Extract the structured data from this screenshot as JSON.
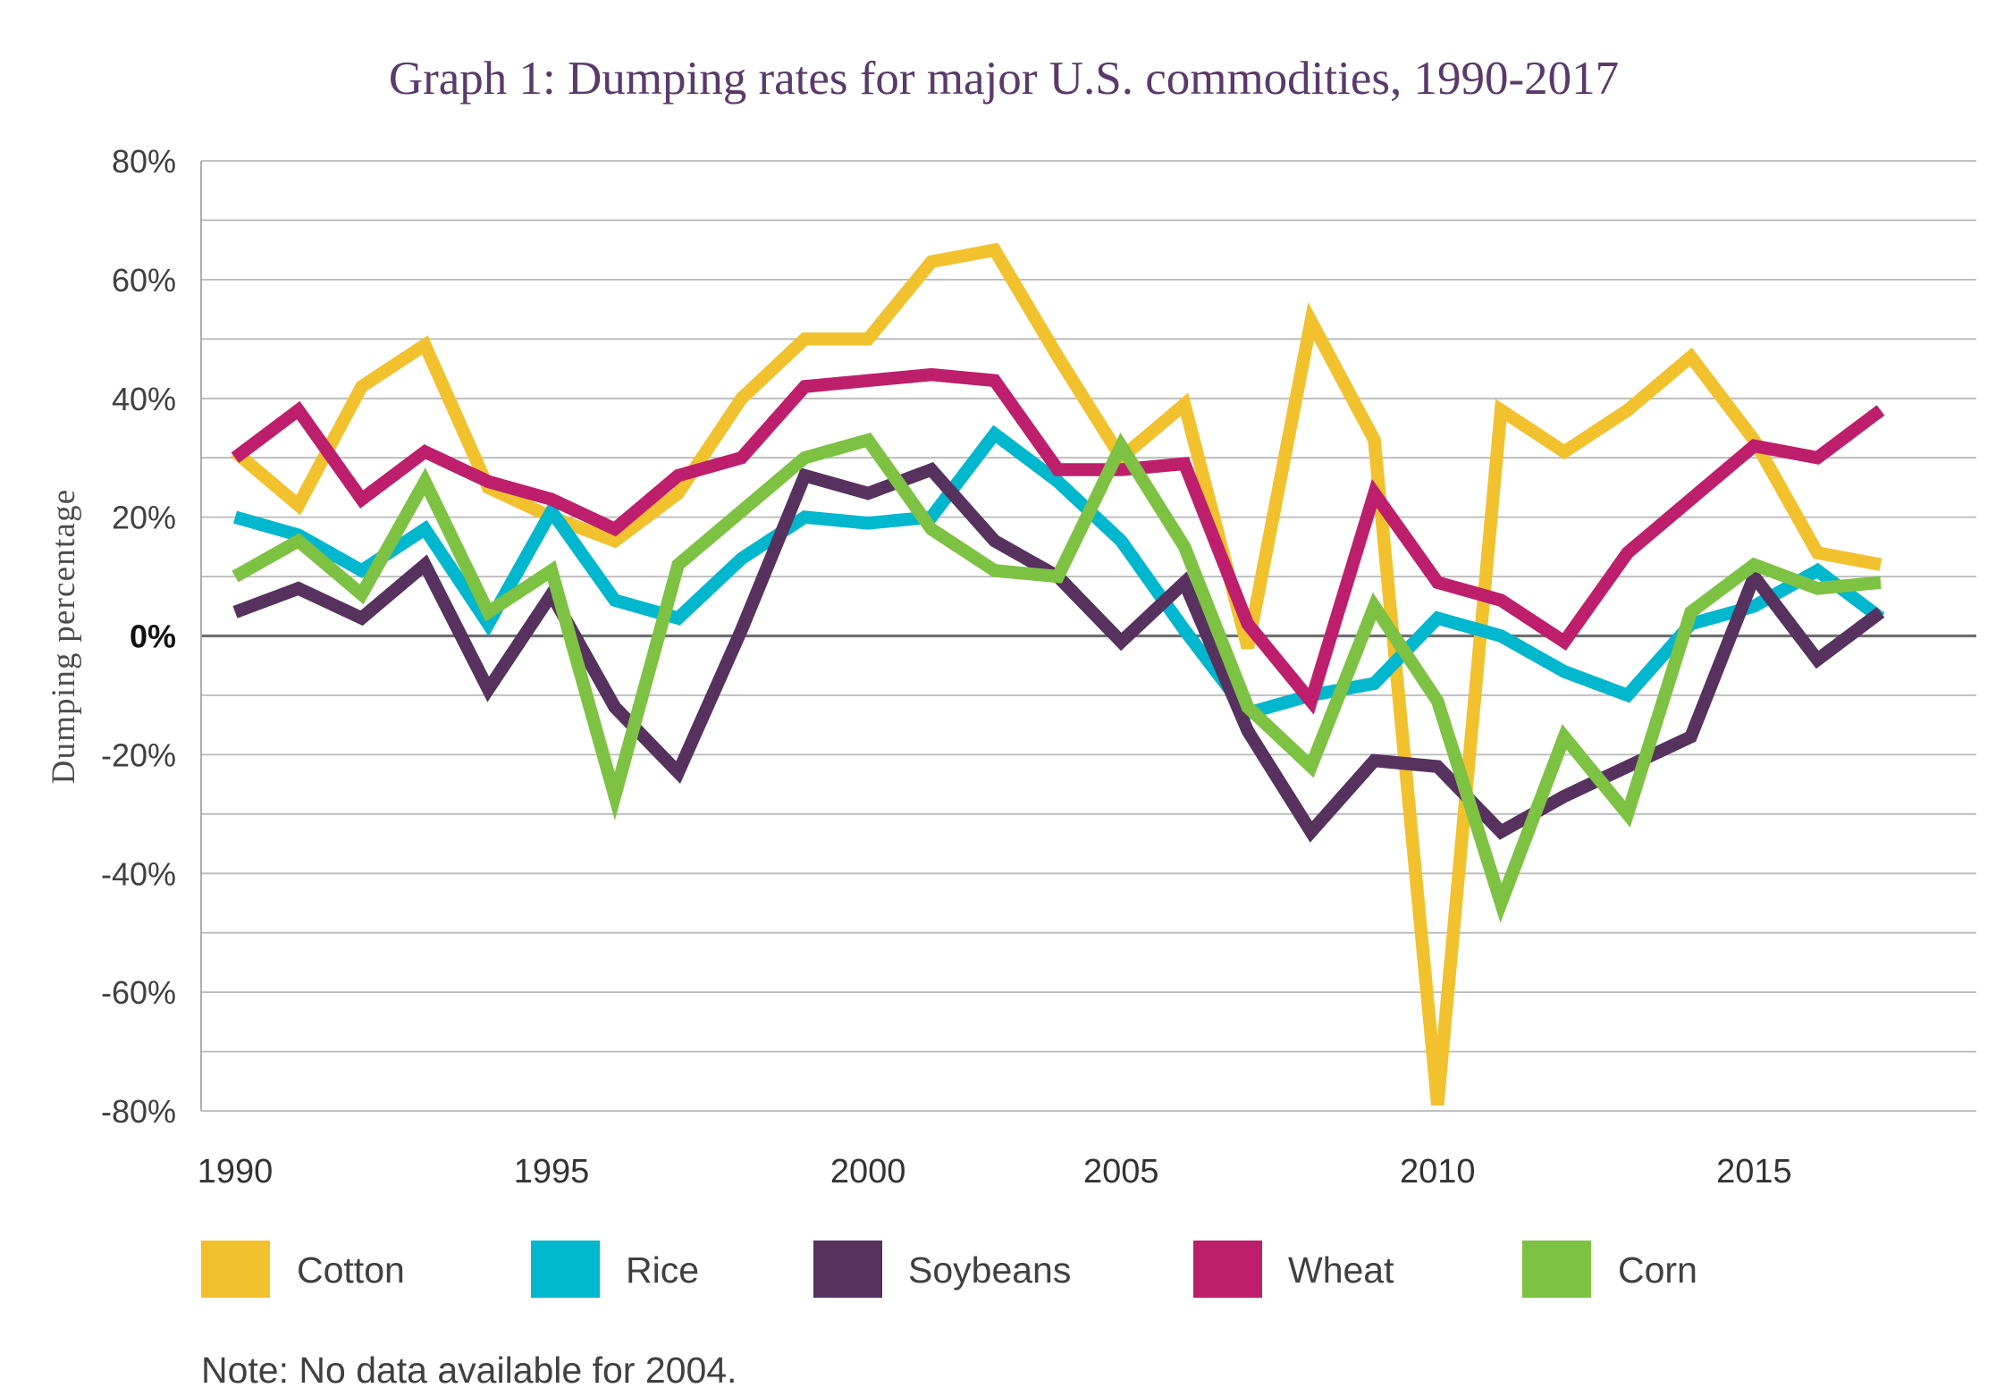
{
  "colors": {
    "title": "#5B3A6B"
  },
  "chart_data": {
    "type": "line",
    "title": "Graph 1: Dumping rates for major U.S. commodities, 1990-2017",
    "ylabel": "Dumping percentage",
    "x": [
      1990,
      1991,
      1992,
      1993,
      1994,
      1995,
      1996,
      1997,
      1998,
      1999,
      2000,
      2001,
      2002,
      2003,
      2005,
      2006,
      2007,
      2008,
      2009,
      2010,
      2011,
      2012,
      2013,
      2014,
      2015,
      2016,
      2017
    ],
    "x_ticks": [
      1990,
      1995,
      2000,
      2005,
      2010,
      2015
    ],
    "x_tick_labels": [
      "1990",
      "1995",
      "2000",
      "2005",
      "2010",
      "2015"
    ],
    "y_ticks": [
      80,
      60,
      40,
      20,
      0,
      -20,
      -40,
      -60,
      -80
    ],
    "y_tick_labels": [
      "80%",
      "60%",
      "40%",
      "20%",
      "0%",
      "-20%",
      "-40%",
      "-60%",
      "-80%"
    ],
    "ylim": [
      -80,
      80
    ],
    "grid": true,
    "legend_position": "bottom",
    "series": [
      {
        "name": "Cotton",
        "color": "#F1C22E",
        "values": [
          31,
          22,
          42,
          49,
          25,
          20,
          16,
          24,
          40,
          50,
          50,
          63,
          65,
          47,
          30,
          39,
          -2,
          53,
          33,
          -79,
          38,
          31,
          38,
          47,
          33,
          14,
          12
        ]
      },
      {
        "name": "Rice",
        "color": "#00B7CD",
        "values": [
          20,
          17,
          11,
          18,
          2,
          21,
          6,
          3,
          13,
          20,
          19,
          20,
          34,
          26,
          16,
          1,
          -13,
          -10,
          -8,
          3,
          0,
          -6,
          -10,
          2,
          5,
          11,
          3
        ]
      },
      {
        "name": "Soybeans",
        "color": "#57325F",
        "values": [
          4,
          8,
          3,
          12,
          -9,
          7,
          -12,
          -23,
          1,
          27,
          24,
          28,
          16,
          10,
          -1,
          9,
          -16,
          -33,
          -21,
          -22,
          -33,
          -27,
          -22,
          -17,
          10,
          -4,
          4
        ]
      },
      {
        "name": "Wheat",
        "color": "#BE1F6C",
        "values": [
          30,
          38,
          23,
          31,
          26,
          23,
          18,
          27,
          30,
          42,
          43,
          44,
          43,
          28,
          28,
          29,
          2,
          -11,
          24,
          9,
          6,
          -1,
          14,
          23,
          32,
          30,
          38
        ]
      },
      {
        "name": "Corn",
        "color": "#7DC242",
        "values": [
          10,
          16,
          7,
          26,
          4,
          11,
          -27,
          12,
          21,
          30,
          33,
          18,
          11,
          10,
          32,
          15,
          -12,
          -22,
          5,
          -11,
          -45,
          -17,
          -30,
          4,
          12,
          8,
          9
        ]
      }
    ],
    "note": "Note: No data available for 2004."
  }
}
